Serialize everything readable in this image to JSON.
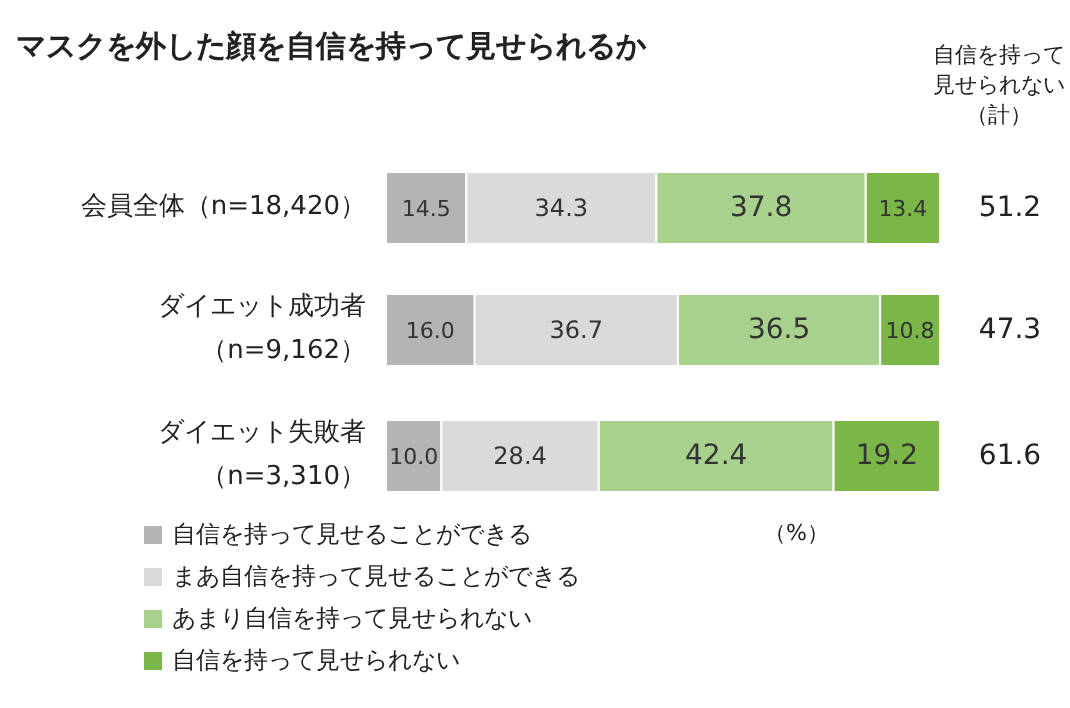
{
  "chart_data": {
    "type": "bar",
    "orientation": "horizontal",
    "stacked": true,
    "title": "マスクを外した顔を自信を持って見せられるか",
    "categories": [
      "会員全体（n=18,420）",
      "ダイエット成功者（n=9,162）",
      "ダイエット失敗者（n=3,310）"
    ],
    "series": [
      {
        "name": "自信を持って見せることができる",
        "color": "#b4b4b4",
        "values": [
          14.5,
          16.0,
          10.0
        ],
        "value_labels": [
          "14.5",
          "16.0",
          "10.0"
        ]
      },
      {
        "name": "まあ自信を持って見せることができる",
        "color": "#dadada",
        "values": [
          34.3,
          36.7,
          28.4
        ],
        "value_labels": [
          "34.3",
          "36.7",
          "28.4"
        ]
      },
      {
        "name": "あまり自信を持って見せられない",
        "color": "#a9d18e",
        "values": [
          37.8,
          36.5,
          42.4
        ],
        "value_labels": [
          "37.8",
          "36.5",
          "42.4"
        ]
      },
      {
        "name": "自信を持って見せられない",
        "color": "#7ab648",
        "values": [
          13.4,
          10.8,
          19.2
        ],
        "value_labels": [
          "13.4",
          "10.8",
          "19.2"
        ]
      }
    ],
    "xlim": [
      0,
      100
    ],
    "legend": "bottom left",
    "annotations": [
      "自信を持って見せられない（計）",
      "（%）",
      "51.2",
      "47.3",
      "61.6"
    ]
  }
}
